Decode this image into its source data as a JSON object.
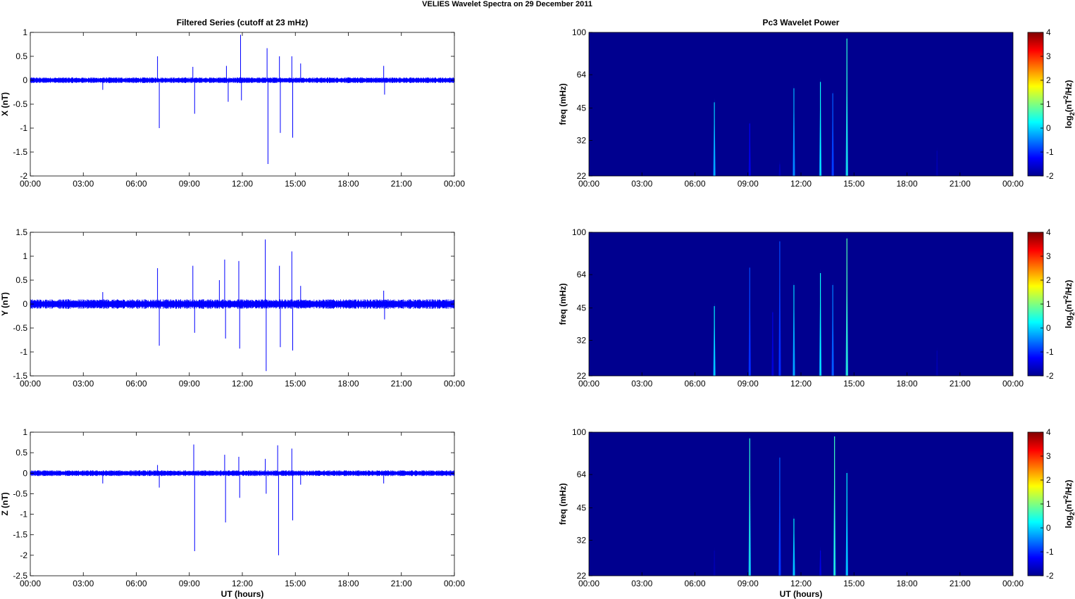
{
  "figure": {
    "title": "VELIES Wavelet Spectra on 29 December  2011",
    "left_title": "Filtered Series (cutoff at 23 mHz)",
    "right_title": "Pc3 Wavelet Power",
    "xlabel": "UT (hours)"
  },
  "colors": {
    "trace": "#0000ff",
    "background": "#00008f",
    "axes": "#000000"
  },
  "chart_data": [
    {
      "type": "line",
      "ylabel": "X (nT)",
      "xticks": [
        "00:00",
        "03:00",
        "06:00",
        "09:00",
        "12:00",
        "15:00",
        "18:00",
        "21:00",
        "00:00"
      ],
      "xlim": [
        0,
        24
      ],
      "ylim": [
        -2,
        1
      ],
      "yticks": [
        -2,
        -1.5,
        -1,
        -0.5,
        0,
        0.5,
        1
      ],
      "noise_band": 0.06,
      "spikes": [
        {
          "x": 4.1,
          "y": -0.2
        },
        {
          "x": 7.2,
          "y": 0.5
        },
        {
          "x": 7.3,
          "y": -1.0
        },
        {
          "x": 9.2,
          "y": 0.28
        },
        {
          "x": 9.3,
          "y": -0.7
        },
        {
          "x": 11.1,
          "y": 0.3
        },
        {
          "x": 11.2,
          "y": -0.45
        },
        {
          "x": 11.9,
          "y": 0.95
        },
        {
          "x": 11.95,
          "y": -0.42
        },
        {
          "x": 13.4,
          "y": 0.67
        },
        {
          "x": 13.45,
          "y": -1.75
        },
        {
          "x": 14.1,
          "y": 0.5
        },
        {
          "x": 14.15,
          "y": -1.1
        },
        {
          "x": 14.8,
          "y": 0.5
        },
        {
          "x": 14.85,
          "y": -1.2
        },
        {
          "x": 15.3,
          "y": 0.35
        },
        {
          "x": 20.0,
          "y": 0.3
        },
        {
          "x": 20.05,
          "y": -0.3
        }
      ]
    },
    {
      "type": "line",
      "ylabel": "Y (nT)",
      "xticks": [
        "00:00",
        "03:00",
        "06:00",
        "09:00",
        "12:00",
        "15:00",
        "18:00",
        "21:00",
        "00:00"
      ],
      "xlim": [
        0,
        24
      ],
      "ylim": [
        -1.5,
        1.5
      ],
      "yticks": [
        -1.5,
        -1,
        -0.5,
        0,
        0.5,
        1,
        1.5
      ],
      "noise_band": 0.1,
      "spikes": [
        {
          "x": 4.1,
          "y": 0.25
        },
        {
          "x": 7.2,
          "y": 0.75
        },
        {
          "x": 7.3,
          "y": -0.87
        },
        {
          "x": 9.2,
          "y": 0.8
        },
        {
          "x": 9.3,
          "y": -0.6
        },
        {
          "x": 10.7,
          "y": 0.5
        },
        {
          "x": 11.0,
          "y": 0.93
        },
        {
          "x": 11.05,
          "y": -0.72
        },
        {
          "x": 11.8,
          "y": 0.9
        },
        {
          "x": 11.85,
          "y": -0.93
        },
        {
          "x": 13.3,
          "y": 1.35
        },
        {
          "x": 13.35,
          "y": -1.4
        },
        {
          "x": 14.1,
          "y": 0.8
        },
        {
          "x": 14.15,
          "y": -0.9
        },
        {
          "x": 14.8,
          "y": 1.1
        },
        {
          "x": 14.85,
          "y": -0.97
        },
        {
          "x": 15.3,
          "y": 0.38
        },
        {
          "x": 20.0,
          "y": 0.28
        },
        {
          "x": 20.05,
          "y": -0.32
        }
      ]
    },
    {
      "type": "line",
      "ylabel": "Z (nT)",
      "xticks": [
        "00:00",
        "03:00",
        "06:00",
        "09:00",
        "12:00",
        "15:00",
        "18:00",
        "21:00",
        "00:00"
      ],
      "xlim": [
        0,
        24
      ],
      "ylim": [
        -2.5,
        1
      ],
      "yticks": [
        -2.5,
        -2,
        -1.5,
        -1,
        -0.5,
        0,
        0.5,
        1
      ],
      "noise_band": 0.07,
      "spikes": [
        {
          "x": 4.1,
          "y": -0.25
        },
        {
          "x": 7.2,
          "y": 0.2
        },
        {
          "x": 7.3,
          "y": -0.35
        },
        {
          "x": 9.25,
          "y": 0.7
        },
        {
          "x": 9.3,
          "y": -1.9
        },
        {
          "x": 11.0,
          "y": 0.45
        },
        {
          "x": 11.05,
          "y": -1.2
        },
        {
          "x": 11.8,
          "y": 0.4
        },
        {
          "x": 11.85,
          "y": -0.6
        },
        {
          "x": 13.3,
          "y": 0.35
        },
        {
          "x": 13.35,
          "y": -0.5
        },
        {
          "x": 14.0,
          "y": 0.68
        },
        {
          "x": 14.05,
          "y": -2.0
        },
        {
          "x": 14.8,
          "y": 0.6
        },
        {
          "x": 14.85,
          "y": -1.15
        },
        {
          "x": 15.3,
          "y": -0.28
        },
        {
          "x": 20.0,
          "y": -0.25
        }
      ]
    },
    {
      "type": "heatmap",
      "ylabel": "freq (mHz)",
      "yticks": [
        "100",
        "64",
        "45",
        "32",
        "22"
      ],
      "xticks": [
        "00:00",
        "03:00",
        "06:00",
        "09:00",
        "12:00",
        "15:00",
        "18:00",
        "21:00",
        "00:00"
      ],
      "xlim": [
        0,
        24
      ],
      "ylim": [
        22,
        100
      ],
      "yscale": "log",
      "colorbar_label": "log2(nT2/Hz)",
      "clim": [
        -2,
        4
      ],
      "colorbar_ticks": [
        "4",
        "3",
        "2",
        "1",
        "0",
        "-1",
        "-2"
      ],
      "features": [
        {
          "x": 7.1,
          "top": 50,
          "level": 0.0
        },
        {
          "x": 9.1,
          "top": 40,
          "level": -1.3
        },
        {
          "x": 10.8,
          "top": 26,
          "level": -1.6
        },
        {
          "x": 11.6,
          "top": 58,
          "level": -0.2
        },
        {
          "x": 13.1,
          "top": 62,
          "level": 0.3
        },
        {
          "x": 13.8,
          "top": 55,
          "level": -0.7
        },
        {
          "x": 14.6,
          "top": 98,
          "level": 0.5
        },
        {
          "x": 19.7,
          "top": 30,
          "level": -1.7
        }
      ]
    },
    {
      "type": "heatmap",
      "ylabel": "freq (mHz)",
      "yticks": [
        "100",
        "64",
        "45",
        "32",
        "22"
      ],
      "xticks": [
        "00:00",
        "03:00",
        "06:00",
        "09:00",
        "12:00",
        "15:00",
        "18:00",
        "21:00",
        "00:00"
      ],
      "xlim": [
        0,
        24
      ],
      "ylim": [
        22,
        100
      ],
      "yscale": "log",
      "colorbar_label": "log2(nT2/Hz)",
      "clim": [
        -2,
        4
      ],
      "colorbar_ticks": [
        "4",
        "3",
        "2",
        "1",
        "0",
        "-1",
        "-2"
      ],
      "features": [
        {
          "x": 7.1,
          "top": 48,
          "level": 0.2
        },
        {
          "x": 9.1,
          "top": 72,
          "level": -0.8
        },
        {
          "x": 10.4,
          "top": 45,
          "level": -1.4
        },
        {
          "x": 10.8,
          "top": 95,
          "level": -0.8
        },
        {
          "x": 11.6,
          "top": 60,
          "level": 0.0
        },
        {
          "x": 13.1,
          "top": 68,
          "level": 0.3
        },
        {
          "x": 13.8,
          "top": 60,
          "level": -0.5
        },
        {
          "x": 14.6,
          "top": 98,
          "level": 0.7
        },
        {
          "x": 19.7,
          "top": 30,
          "level": -1.7
        }
      ]
    },
    {
      "type": "heatmap",
      "ylabel": "freq (mHz)",
      "yticks": [
        "100",
        "64",
        "45",
        "32",
        "22"
      ],
      "xticks": [
        "00:00",
        "03:00",
        "06:00",
        "09:00",
        "12:00",
        "15:00",
        "18:00",
        "21:00",
        "00:00"
      ],
      "xlim": [
        0,
        24
      ],
      "ylim": [
        22,
        100
      ],
      "yscale": "log",
      "colorbar_label": "log2(nT2/Hz)",
      "clim": [
        -2,
        4
      ],
      "colorbar_ticks": [
        "4",
        "3",
        "2",
        "1",
        "0",
        "-1",
        "-2"
      ],
      "features": [
        {
          "x": 7.1,
          "top": 30,
          "level": -1.7
        },
        {
          "x": 9.1,
          "top": 98,
          "level": 0.5
        },
        {
          "x": 10.8,
          "top": 80,
          "level": -0.7
        },
        {
          "x": 11.6,
          "top": 42,
          "level": 0.2
        },
        {
          "x": 13.1,
          "top": 30,
          "level": -1.4
        },
        {
          "x": 13.9,
          "top": 100,
          "level": 0.6
        },
        {
          "x": 14.6,
          "top": 68,
          "level": 0.2
        }
      ]
    }
  ]
}
